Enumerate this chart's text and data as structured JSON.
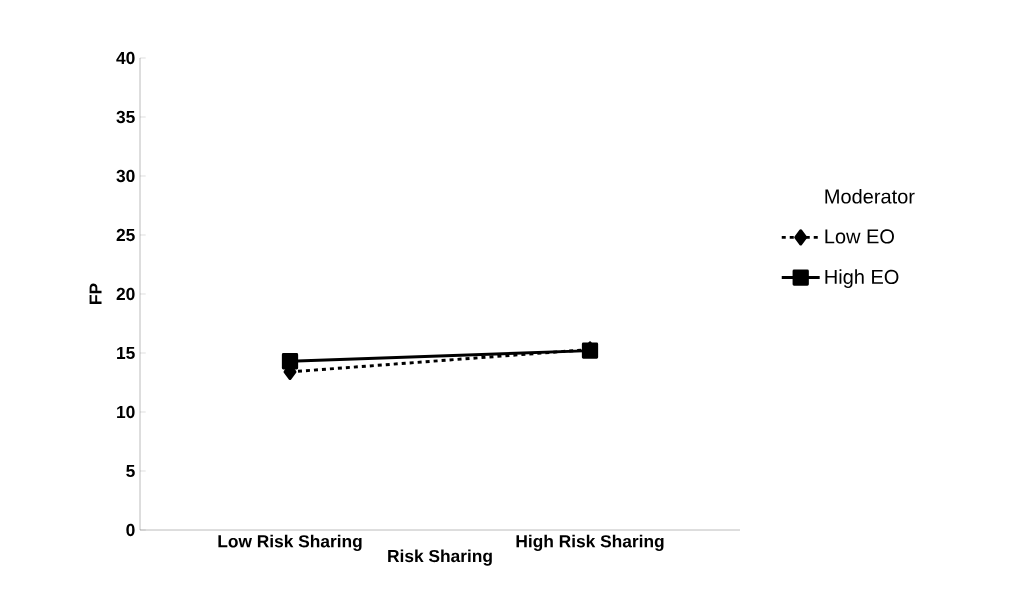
{
  "chart_data": {
    "type": "line",
    "xlabel": "Risk Sharing",
    "ylabel": "FP",
    "legend_title": "Moderator",
    "categories": [
      "Low Risk Sharing",
      "High Risk Sharing"
    ],
    "series": [
      {
        "name": "Low EO",
        "color": "#000000",
        "values": [
          13.4,
          15.3
        ],
        "marker": "diamond",
        "line_style": "dashed"
      },
      {
        "name": "High EO",
        "color": "#000000",
        "values": [
          14.3,
          15.2
        ],
        "marker": "square",
        "line_style": "solid"
      }
    ],
    "ylim": [
      0,
      40
    ],
    "yticks": [
      0,
      5,
      10,
      15,
      20,
      25,
      30,
      35,
      40
    ],
    "grid": false,
    "legend": "right"
  }
}
